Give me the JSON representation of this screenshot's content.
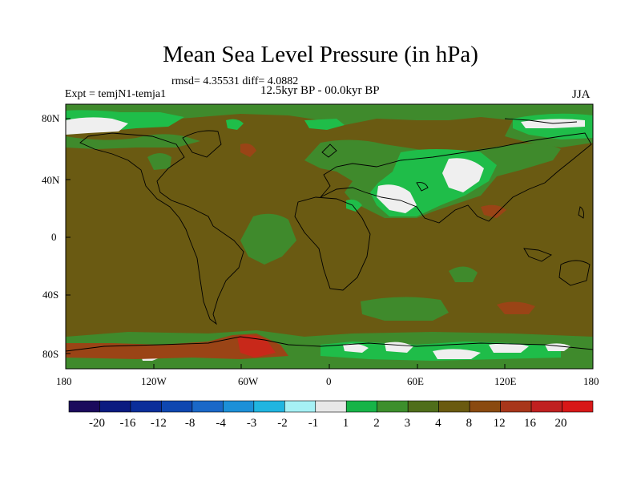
{
  "title": "Mean Sea Level Pressure (in hPa)",
  "stats_text": "rmsd= 4.35531 diff= 4.0882",
  "experiment_label": "Expt = temjN1-temja1",
  "period_label": "12.5kyr BP - 00.0kyr BP",
  "season_label": "JJA",
  "y_ticks": [
    "80N",
    "40N",
    "0",
    "40S",
    "80S"
  ],
  "x_ticks": [
    "180",
    "120W",
    "60W",
    "0",
    "60E",
    "120E",
    "180"
  ],
  "colorbar": {
    "labels": [
      "-20",
      "-16",
      "-12",
      "-8",
      "-4",
      "-3",
      "-2",
      "-1",
      "1",
      "2",
      "3",
      "4",
      "8",
      "12",
      "16",
      "20"
    ],
    "colors": [
      "#1b0a5c",
      "#0a1a80",
      "#0b2e9a",
      "#0f47b0",
      "#1a68c8",
      "#1c90d8",
      "#20b5e0",
      "#a6f1f5",
      "#e8e8e8",
      "#17b448",
      "#3d8f2c",
      "#4f6e1a",
      "#6a5a10",
      "#8a4a10",
      "#a8361a",
      "#c02020",
      "#d81818"
    ]
  },
  "palette": {
    "background_field": "#6a5a12",
    "green": "#3f8a2c",
    "light_green": "#1fbd49",
    "white": "#efefef",
    "brown_red": "#9a4416",
    "red": "#c8281a"
  }
}
